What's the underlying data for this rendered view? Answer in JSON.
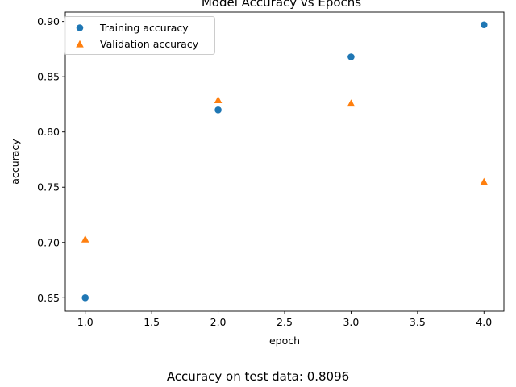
{
  "chart_data": {
    "type": "scatter",
    "title": "Model Accuracy vs Epochs",
    "xlabel": "epoch",
    "ylabel": "accuracy",
    "xlim": [
      0.85,
      4.15
    ],
    "ylim": [
      0.6378,
      0.9085
    ],
    "xticks": [
      1.0,
      1.5,
      2.0,
      2.5,
      3.0,
      3.5,
      4.0
    ],
    "yticks": [
      0.65,
      0.7,
      0.75,
      0.8,
      0.85,
      0.9
    ],
    "xtick_labels": [
      "1.0",
      "1.5",
      "2.0",
      "2.5",
      "3.0",
      "3.5",
      "4.0"
    ],
    "ytick_labels": [
      "0.65",
      "0.70",
      "0.75",
      "0.80",
      "0.85",
      "0.90"
    ],
    "grid": false,
    "legend_position": "top-left",
    "series": [
      {
        "name": "Training accuracy",
        "marker": "circle",
        "color": "#1f77b4",
        "x": [
          1,
          2,
          3,
          4
        ],
        "y": [
          0.65,
          0.82,
          0.868,
          0.897
        ]
      },
      {
        "name": "Validation accuracy",
        "marker": "triangle",
        "color": "#ff7f0e",
        "x": [
          1,
          2,
          3,
          4
        ],
        "y": [
          0.703,
          0.829,
          0.826,
          0.755
        ]
      }
    ]
  },
  "footer": {
    "text": "Accuracy on test data: 0.8096"
  }
}
